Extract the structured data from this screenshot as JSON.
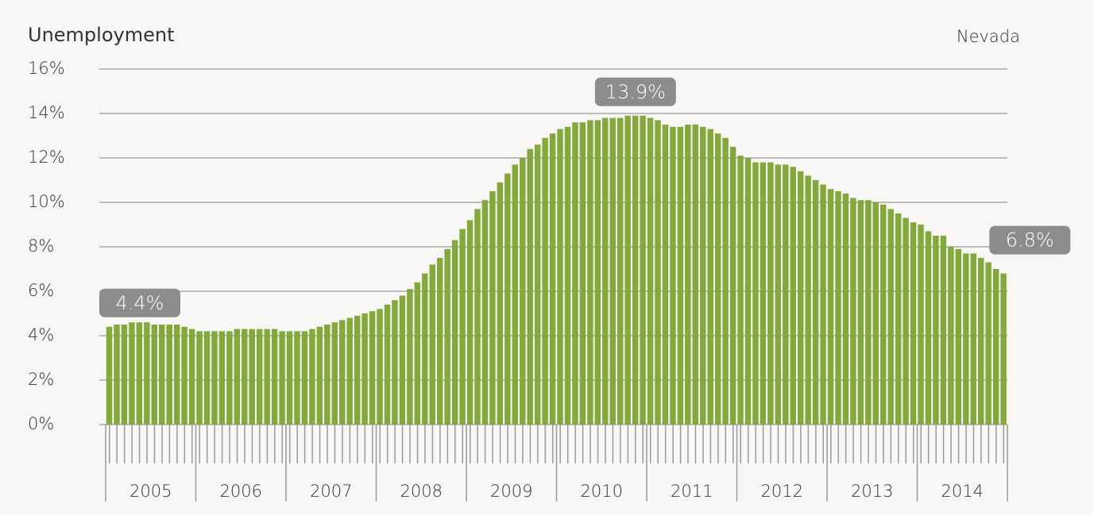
{
  "chart_data": {
    "type": "bar",
    "title": "Unemployment",
    "subtitle": "Nevada",
    "color": "#83a93c",
    "categories": [
      null,
      null,
      null,
      null,
      null,
      null,
      null,
      null,
      null,
      null,
      null,
      null,
      null,
      null,
      null,
      null,
      null,
      null,
      null,
      null,
      null,
      null,
      null,
      null,
      null,
      null,
      null,
      null,
      null,
      null,
      null,
      null,
      null,
      null,
      null,
      null,
      null,
      null,
      null,
      null,
      null,
      null,
      null,
      null,
      null,
      null,
      null,
      null,
      null,
      null,
      null,
      null,
      null,
      null,
      null,
      null,
      null,
      null,
      null,
      null,
      null,
      null,
      null,
      null,
      null,
      null,
      null,
      null,
      null,
      null,
      null,
      null,
      null,
      null,
      null,
      null,
      null,
      null,
      null,
      null,
      null,
      null,
      null,
      null,
      null,
      null,
      null,
      null,
      null,
      null,
      null,
      null,
      null,
      null,
      null,
      null,
      null,
      null,
      null,
      null,
      null,
      null,
      null,
      null,
      null,
      null,
      null,
      null,
      null,
      null,
      null,
      null,
      null,
      null,
      null,
      null,
      null,
      null,
      null,
      null
    ],
    "year_labels": [
      "2005",
      "2006",
      "2007",
      "2008",
      "2009",
      "2010",
      "2011",
      "2012",
      "2013",
      "2014"
    ],
    "values": [
      4.4,
      4.5,
      4.5,
      4.6,
      4.6,
      4.6,
      4.5,
      4.5,
      4.5,
      4.5,
      4.4,
      4.3,
      4.2,
      4.2,
      4.2,
      4.2,
      4.2,
      4.3,
      4.3,
      4.3,
      4.3,
      4.3,
      4.3,
      4.2,
      4.2,
      4.2,
      4.2,
      4.3,
      4.4,
      4.5,
      4.6,
      4.7,
      4.8,
      4.9,
      5.0,
      5.1,
      5.2,
      5.4,
      5.6,
      5.8,
      6.1,
      6.4,
      6.8,
      7.2,
      7.5,
      7.9,
      8.3,
      8.8,
      9.2,
      9.7,
      10.1,
      10.5,
      10.9,
      11.3,
      11.7,
      12.0,
      12.4,
      12.6,
      12.9,
      13.1,
      13.3,
      13.4,
      13.6,
      13.6,
      13.7,
      13.7,
      13.8,
      13.8,
      13.8,
      13.9,
      13.9,
      13.9,
      13.8,
      13.7,
      13.5,
      13.4,
      13.4,
      13.5,
      13.5,
      13.4,
      13.3,
      13.1,
      12.9,
      12.5,
      12.1,
      12.0,
      11.8,
      11.8,
      11.8,
      11.7,
      11.7,
      11.6,
      11.4,
      11.2,
      11.0,
      10.8,
      10.6,
      10.5,
      10.4,
      10.2,
      10.1,
      10.1,
      10.0,
      9.9,
      9.7,
      9.5,
      9.3,
      9.1,
      9.0,
      8.7,
      8.5,
      8.5,
      8.0,
      7.9,
      7.7,
      7.7,
      7.5,
      7.3,
      7.0,
      6.8
    ],
    "value_labels": [
      "4.4%",
      null,
      null,
      null,
      null,
      null,
      null,
      null,
      null,
      null,
      null,
      null,
      null,
      null,
      null,
      null,
      null,
      null,
      null,
      null,
      null,
      null,
      null,
      null,
      null,
      null,
      null,
      null,
      null,
      null,
      null,
      null,
      null,
      null,
      null,
      null,
      null,
      null,
      null,
      null,
      null,
      null,
      null,
      null,
      null,
      null,
      null,
      null,
      null,
      null,
      null,
      null,
      null,
      null,
      null,
      null,
      null,
      null,
      null,
      null,
      null,
      null,
      null,
      null,
      null,
      null,
      null,
      null,
      null,
      null,
      "13.9%",
      null,
      null,
      null,
      null,
      null,
      null,
      null,
      null,
      null,
      null,
      null,
      null,
      null,
      null,
      null,
      null,
      null,
      null,
      null,
      null,
      null,
      null,
      null,
      null,
      null,
      null,
      null,
      null,
      null,
      null,
      null,
      null,
      null,
      null,
      null,
      null,
      null,
      null,
      null,
      null,
      null,
      null,
      null,
      null,
      null,
      null,
      null,
      null,
      "6.8%"
    ],
    "ylim": [
      0,
      16
    ],
    "yticks": [
      {
        "value": 0,
        "label": "0%"
      },
      {
        "value": 2,
        "label": "2%"
      },
      {
        "value": 4,
        "label": "4%"
      },
      {
        "value": 6,
        "label": "6%"
      },
      {
        "value": 8,
        "label": "8%"
      },
      {
        "value": 10,
        "label": "10%"
      },
      {
        "value": 12,
        "label": "12%"
      },
      {
        "value": 14,
        "label": "14%"
      },
      {
        "value": 16,
        "label": "16%"
      }
    ],
    "grid": true
  }
}
